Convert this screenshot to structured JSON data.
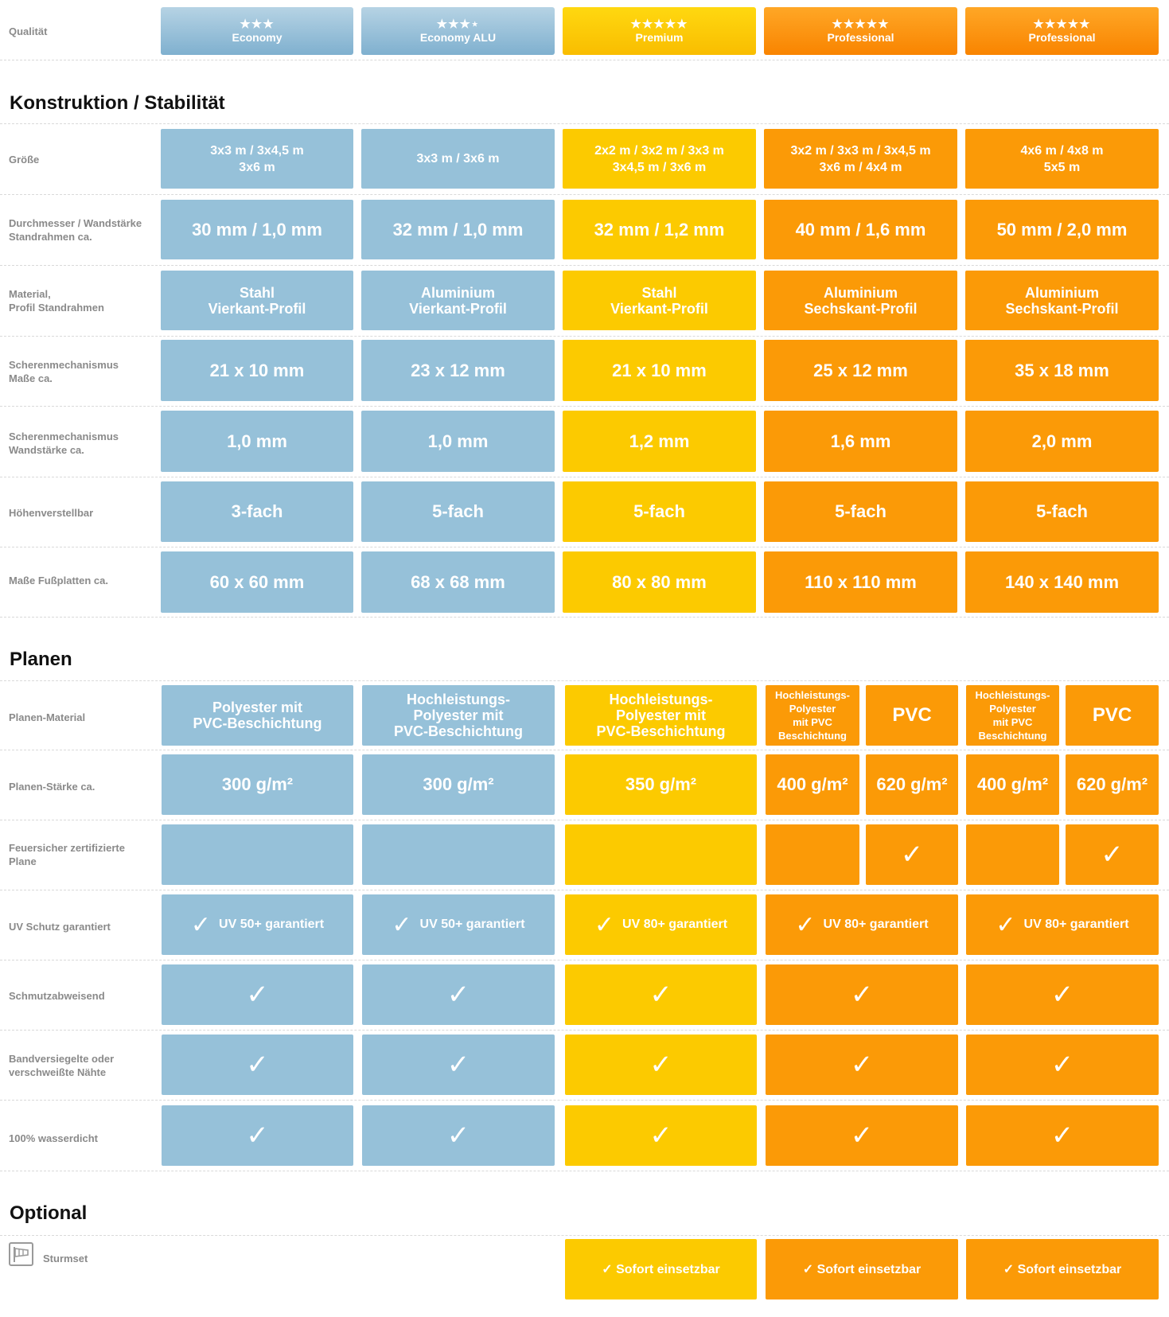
{
  "header": {
    "label": "Qualität",
    "tiers": [
      {
        "stars": "★★★",
        "name": "Economy"
      },
      {
        "stars": "★★★⋆",
        "name": "Economy ALU"
      },
      {
        "stars": "★★★★★",
        "name": "Premium"
      },
      {
        "stars": "★★★★★",
        "name": "Professional"
      },
      {
        "stars": "★★★★★",
        "name": "Professional"
      }
    ]
  },
  "construction": {
    "title": "Konstruktion / Stabilität",
    "rows": [
      {
        "label": "Größe",
        "values": [
          "3x3 m / 3x4,5 m\n3x6 m",
          "3x3 m / 3x6 m",
          "2x2 m / 3x2 m / 3x3 m\n3x4,5 m / 3x6 m",
          "3x2 m / 3x3 m / 3x4,5 m\n3x6 m / 4x4 m",
          "4x6 m / 4x8 m\n5x5 m"
        ]
      },
      {
        "label": "Durchmesser / Wandstärke\nStandrahmen ca.",
        "values": [
          "30 mm / 1,0 mm",
          "32 mm / 1,0 mm",
          "32 mm / 1,2 mm",
          "40 mm / 1,6 mm",
          "50 mm / 2,0 mm"
        ]
      },
      {
        "label": "Material,\nProfil Standrahmen",
        "values": [
          "Stahl\nVierkant-Profil",
          "Aluminium\nVierkant-Profil",
          "Stahl\nVierkant-Profil",
          "Aluminium\nSechskant-Profil",
          "Aluminium\nSechskant-Profil"
        ]
      },
      {
        "label": "Scherenmechanismus\nMaße ca.",
        "values": [
          "21 x 10 mm",
          "23 x 12 mm",
          "21 x 10 mm",
          "25 x 12 mm",
          "35 x 18 mm"
        ]
      },
      {
        "label": "Scherenmechanismus\nWandstärke ca.",
        "values": [
          "1,0 mm",
          "1,0 mm",
          "1,2 mm",
          "1,6 mm",
          "2,0 mm"
        ]
      },
      {
        "label": "Höhenverstellbar",
        "values": [
          "3-fach",
          "5-fach",
          "5-fach",
          "5-fach",
          "5-fach"
        ]
      },
      {
        "label": "Maße Fußplatten ca.",
        "values": [
          "60 x 60 mm",
          "68 x 68 mm",
          "80 x 80 mm",
          "110 x 110 mm",
          "140 x 140 mm"
        ]
      }
    ]
  },
  "tarps": {
    "title": "Planen",
    "material": {
      "label": "Planen-Material",
      "values": [
        "Polyester mit\nPVC-Beschichtung",
        "Hochleistungs-\nPolyester mit\nPVC-Beschichtung",
        "Hochleistungs-\nPolyester mit\nPVC-Beschichtung",
        "Hochleistungs-\nPolyester\nmit  PVC\nBeschichtung",
        "PVC",
        "Hochleistungs-\nPolyester\nmit PVC\nBeschichtung",
        "PVC"
      ]
    },
    "weight": {
      "label": "Planen-Stärke ca.",
      "values": [
        "300 g/m²",
        "300 g/m²",
        "350 g/m²",
        "400 g/m²",
        "620 g/m²",
        "400 g/m²",
        "620 g/m²"
      ]
    },
    "fireproof": {
      "label": "Feuersicher zertifizierte\nPlane",
      "values": [
        "",
        "",
        "",
        "",
        "✓",
        "",
        "✓"
      ]
    },
    "uv": {
      "label": "UV Schutz garantiert",
      "check": "✓",
      "values": [
        "UV 50+ garantiert",
        "UV 50+ garantiert",
        "UV 80+ garantiert",
        "UV 80+ garantiert",
        "UV 80+ garantiert"
      ]
    },
    "checks": [
      {
        "label": "Schmutzabweisend",
        "mark": "✓"
      },
      {
        "label": "Bandversiegelte oder\nverschweißte Nähte",
        "mark": "✓"
      },
      {
        "label": "100% wasserdicht",
        "mark": "✓"
      }
    ]
  },
  "optional": {
    "title": "Optional",
    "storm": {
      "label": "Sturmset",
      "icon": "windsock-icon",
      "values": [
        "✓ Sofort einsetzbar",
        "✓ Sofort einsetzbar",
        "✓ Sofort einsetzbar"
      ]
    }
  },
  "colors": {
    "blue": "#96c1d9",
    "yellow": "#fcca00",
    "orange": "#fb9a07"
  }
}
